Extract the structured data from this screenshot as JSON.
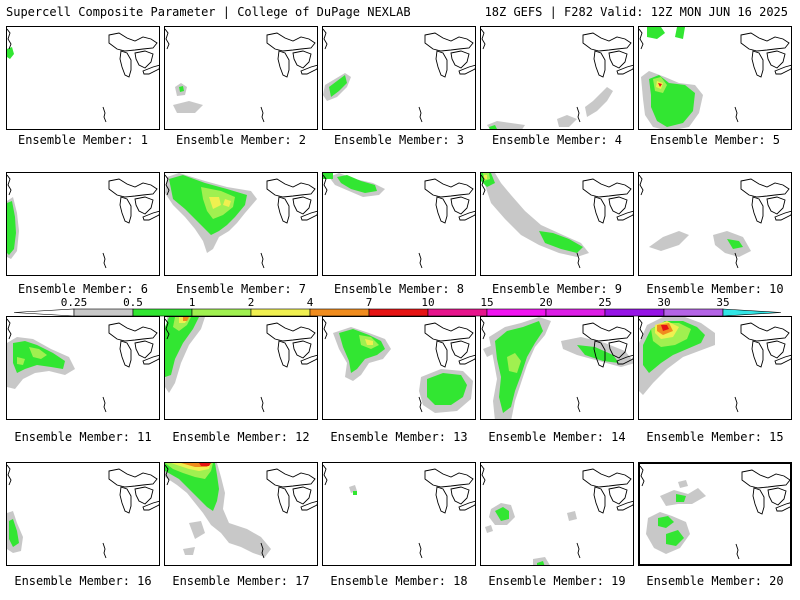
{
  "header": {
    "left": "Supercell Composite Parameter | College of DuPage NEXLAB",
    "right": "18Z GEFS | F282 Valid: 12Z MON JUN 16 2025"
  },
  "colors": {
    "lvl1": "#c8c8c8",
    "lvl2": "#32e632",
    "lvl3": "#a0f050",
    "lvl4": "#f0f050",
    "lvl5": "#f08c1e",
    "lvl6": "#e61414",
    "lvl7": "#e6148c",
    "lvl8": "#f014f0",
    "lvl9": "#dc1ee6",
    "lvl10": "#9614e6",
    "lvl11": "#b464e6",
    "lvl12": "#32e6e6"
  },
  "colorbar": {
    "ticks": [
      "0.25",
      "0.5",
      "1",
      "2",
      "4",
      "7",
      "10",
      "15",
      "20",
      "25",
      "30",
      "35"
    ]
  },
  "members": [
    {
      "label": "Ensemble Member: 1"
    },
    {
      "label": "Ensemble Member: 2"
    },
    {
      "label": "Ensemble Member: 3"
    },
    {
      "label": "Ensemble Member: 4"
    },
    {
      "label": "Ensemble Member: 5"
    },
    {
      "label": "Ensemble Member: 6"
    },
    {
      "label": "Ensemble Member: 7"
    },
    {
      "label": "Ensemble Member: 8"
    },
    {
      "label": "Ensemble Member: 9"
    },
    {
      "label": "Ensemble Member: 10"
    },
    {
      "label": "Ensemble Member: 11"
    },
    {
      "label": "Ensemble Member: 12"
    },
    {
      "label": "Ensemble Member: 13"
    },
    {
      "label": "Ensemble Member: 14"
    },
    {
      "label": "Ensemble Member: 15"
    },
    {
      "label": "Ensemble Member: 16"
    },
    {
      "label": "Ensemble Member: 17"
    },
    {
      "label": "Ensemble Member: 18"
    },
    {
      "label": "Ensemble Member: 19"
    },
    {
      "label": "Ensemble Member: 20"
    }
  ]
}
